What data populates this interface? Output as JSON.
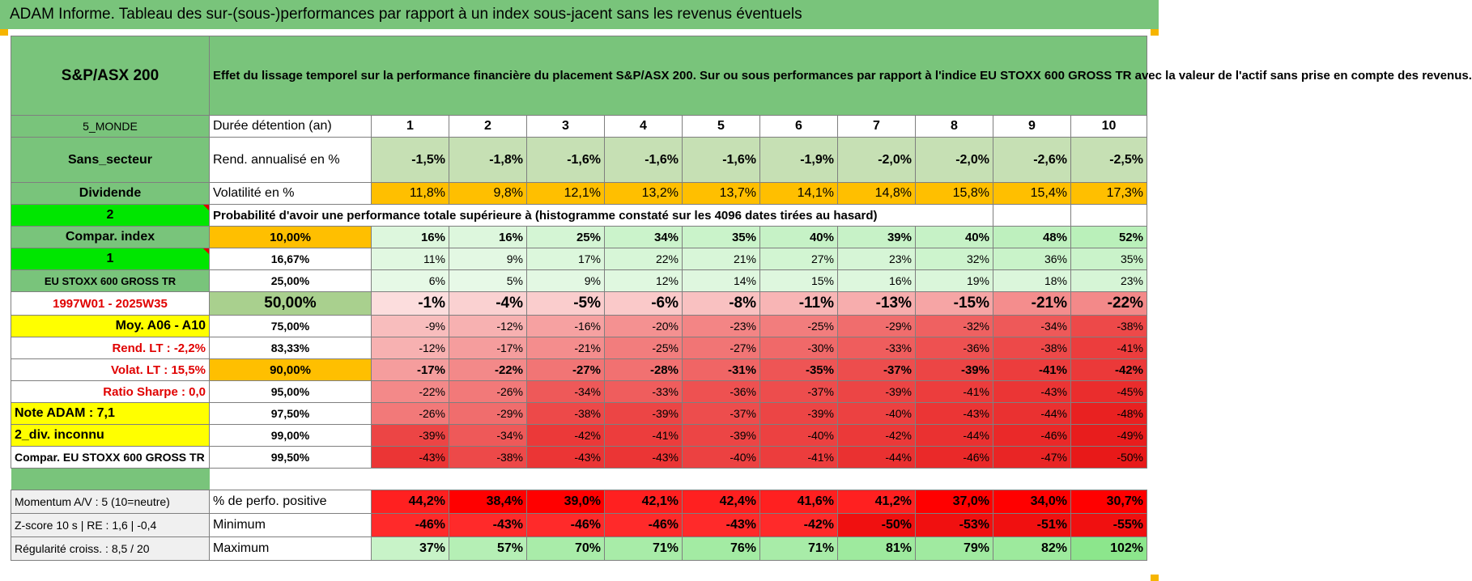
{
  "title": "ADAM Informe. Tableau des sur-(sous-)performances par rapport à un index sous-jacent sans les revenus éventuels",
  "header": {
    "asset": "S&P/ASX 200",
    "description": "Effet du lissage temporel sur la performance financière du placement S&P/ASX 200. Sur ou sous performances par rapport à l'indice EU STOXX 600 GROSS TR avec la valeur de l'actif sans prise en compte des revenus."
  },
  "rows": {
    "duration": {
      "left": "5_MONDE",
      "label": "Durée détention (an)",
      "values": [
        "1",
        "2",
        "3",
        "4",
        "5",
        "6",
        "7",
        "8",
        "9",
        "10"
      ]
    },
    "rend": {
      "left": "Sans_secteur",
      "label": "Rend. annualisé en %",
      "values": [
        "-1,5%",
        "-1,8%",
        "-1,6%",
        "-1,6%",
        "-1,6%",
        "-1,9%",
        "-2,0%",
        "-2,0%",
        "-2,6%",
        "-2,5%"
      ]
    },
    "volat": {
      "left": "Dividende",
      "label": "Volatilité en %",
      "values": [
        "11,8%",
        "9,8%",
        "12,1%",
        "13,2%",
        "13,7%",
        "14,1%",
        "14,8%",
        "15,8%",
        "15,4%",
        "17,3%"
      ]
    },
    "prob_header": {
      "left": "2",
      "label": "Probabilité d'avoir une performance totale supérieure à (histogramme constaté sur les 4096 dates tirées au hasard)"
    }
  },
  "percentile_rows": [
    {
      "left": "Compar. index",
      "pct": "10,00%",
      "values": [
        "16%",
        "16%",
        "25%",
        "34%",
        "35%",
        "40%",
        "39%",
        "40%",
        "48%",
        "52%"
      ]
    },
    {
      "left": "1",
      "pct": "16,67%",
      "values": [
        "11%",
        "9%",
        "17%",
        "22%",
        "21%",
        "27%",
        "23%",
        "32%",
        "36%",
        "35%"
      ]
    },
    {
      "left": "EU STOXX 600 GROSS TR",
      "pct": "25,00%",
      "values": [
        "6%",
        "5%",
        "9%",
        "12%",
        "14%",
        "15%",
        "16%",
        "19%",
        "18%",
        "23%"
      ]
    },
    {
      "left": "1997W01 - 2025W35",
      "pct": "50,00%",
      "values": [
        "-1%",
        "-4%",
        "-5%",
        "-6%",
        "-8%",
        "-11%",
        "-13%",
        "-15%",
        "-21%",
        "-22%"
      ]
    },
    {
      "left": "Moy. A06 - A10",
      "pct": "75,00%",
      "values": [
        "-9%",
        "-12%",
        "-16%",
        "-20%",
        "-23%",
        "-25%",
        "-29%",
        "-32%",
        "-34%",
        "-38%"
      ]
    },
    {
      "left": "Rend. LT :   -2,2%",
      "pct": "83,33%",
      "values": [
        "-12%",
        "-17%",
        "-21%",
        "-25%",
        "-27%",
        "-30%",
        "-33%",
        "-36%",
        "-38%",
        "-41%"
      ]
    },
    {
      "left": "Volat. LT :   15,5%",
      "pct": "90,00%",
      "values": [
        "-17%",
        "-22%",
        "-27%",
        "-28%",
        "-31%",
        "-35%",
        "-37%",
        "-39%",
        "-41%",
        "-42%"
      ]
    },
    {
      "left": "Ratio Sharpe :    0,0",
      "pct": "95,00%",
      "values": [
        "-22%",
        "-26%",
        "-34%",
        "-33%",
        "-36%",
        "-37%",
        "-39%",
        "-41%",
        "-43%",
        "-45%"
      ]
    },
    {
      "left": "Note ADAM : 7,1",
      "pct": "97,50%",
      "values": [
        "-26%",
        "-29%",
        "-38%",
        "-39%",
        "-37%",
        "-39%",
        "-40%",
        "-43%",
        "-44%",
        "-48%"
      ]
    },
    {
      "left": "2_div. inconnu",
      "pct": "99,00%",
      "values": [
        "-39%",
        "-34%",
        "-42%",
        "-41%",
        "-39%",
        "-40%",
        "-42%",
        "-44%",
        "-46%",
        "-49%"
      ]
    },
    {
      "left": "Compar. EU STOXX 600 GROSS TR",
      "pct": "99,50%",
      "values": [
        "-43%",
        "-38%",
        "-43%",
        "-43%",
        "-40%",
        "-41%",
        "-44%",
        "-46%",
        "-47%",
        "-50%"
      ]
    }
  ],
  "bottom_rows": [
    {
      "left": "Momentum A/V : 5 (10=neutre)",
      "label": "% de perfo. positive",
      "values": [
        "44,2%",
        "38,4%",
        "39,0%",
        "42,1%",
        "42,4%",
        "41,6%",
        "41,2%",
        "37,0%",
        "34,0%",
        "30,7%"
      ]
    },
    {
      "left": "Z-score 10 s  |  RE : 1,6  |  -0,4",
      "label": "Minimum",
      "values": [
        "-46%",
        "-43%",
        "-46%",
        "-46%",
        "-43%",
        "-42%",
        "-50%",
        "-53%",
        "-51%",
        "-55%"
      ]
    },
    {
      "left": "Régularité croiss. : 8,5 / 20",
      "label": "Maximum",
      "values": [
        "37%",
        "57%",
        "70%",
        "71%",
        "76%",
        "71%",
        "81%",
        "79%",
        "82%",
        "102%"
      ]
    }
  ],
  "colors": {
    "header_green": "#79c47b",
    "orange": "#ffbf00",
    "bright_green": "#00e600",
    "yellow": "#ffff00",
    "red": "#e00000"
  }
}
